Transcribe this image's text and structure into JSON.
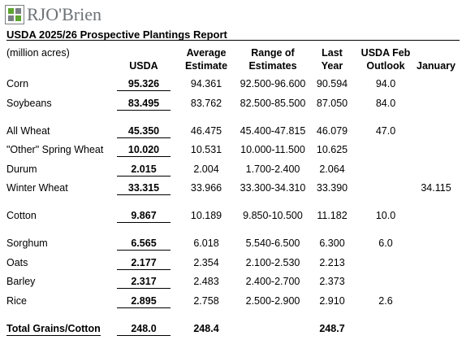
{
  "header": {
    "logo": "RJO'Brien",
    "title": "USDA 2025/26 Prospective Plantings Report"
  },
  "table": {
    "columns": [
      [
        "(million acres)"
      ],
      [
        "USDA"
      ],
      [
        "Average",
        "Estimate"
      ],
      [
        "Range of",
        "Estimates"
      ],
      [
        "Last",
        "Year"
      ],
      [
        "USDA Feb",
        "Outlook"
      ],
      [
        "January"
      ]
    ],
    "groups": [
      {
        "rows": [
          [
            "Corn",
            "95.326",
            "94.361",
            "92.500-96.600",
            "90.594",
            "94.0",
            null
          ],
          [
            "Soybeans",
            "83.495",
            "83.762",
            "82.500-85.500",
            "87.050",
            "84.0",
            null
          ]
        ]
      },
      {
        "rows": [
          [
            "All Wheat",
            "45.350",
            "46.475",
            "45.400-47.815",
            "46.079",
            "47.0",
            null
          ],
          [
            "\"Other\" Spring Wheat",
            "10.020",
            "10.531",
            "10.000-11.500",
            "10.625",
            null,
            null
          ],
          [
            "Durum",
            "2.015",
            "2.004",
            "1.700-2.400",
            "2.064",
            null,
            null
          ],
          [
            "Winter Wheat",
            "33.315",
            "33.966",
            "33.300-34.310",
            "33.390",
            null,
            "34.115"
          ]
        ]
      },
      {
        "rows": [
          [
            "Cotton",
            "9.867",
            "10.189",
            "9.850-10.500",
            "11.182",
            "10.0",
            null
          ]
        ]
      },
      {
        "rows": [
          [
            "Sorghum",
            "6.565",
            "6.018",
            "5.540-6.500",
            "6.300",
            "6.0",
            null
          ],
          [
            "Oats",
            "2.177",
            "2.354",
            "2.100-2.530",
            "2.213",
            null,
            null
          ],
          [
            "Barley",
            "2.317",
            "2.483",
            "2.400-2.700",
            "2.373",
            null,
            null
          ],
          [
            "Rice",
            "2.895",
            "2.758",
            "2.500-2.900",
            "2.910",
            "2.6",
            null
          ]
        ]
      }
    ],
    "total": [
      "Total Grains/Cotton",
      "248.0",
      "248.4",
      null,
      "248.7",
      null,
      null
    ]
  }
}
